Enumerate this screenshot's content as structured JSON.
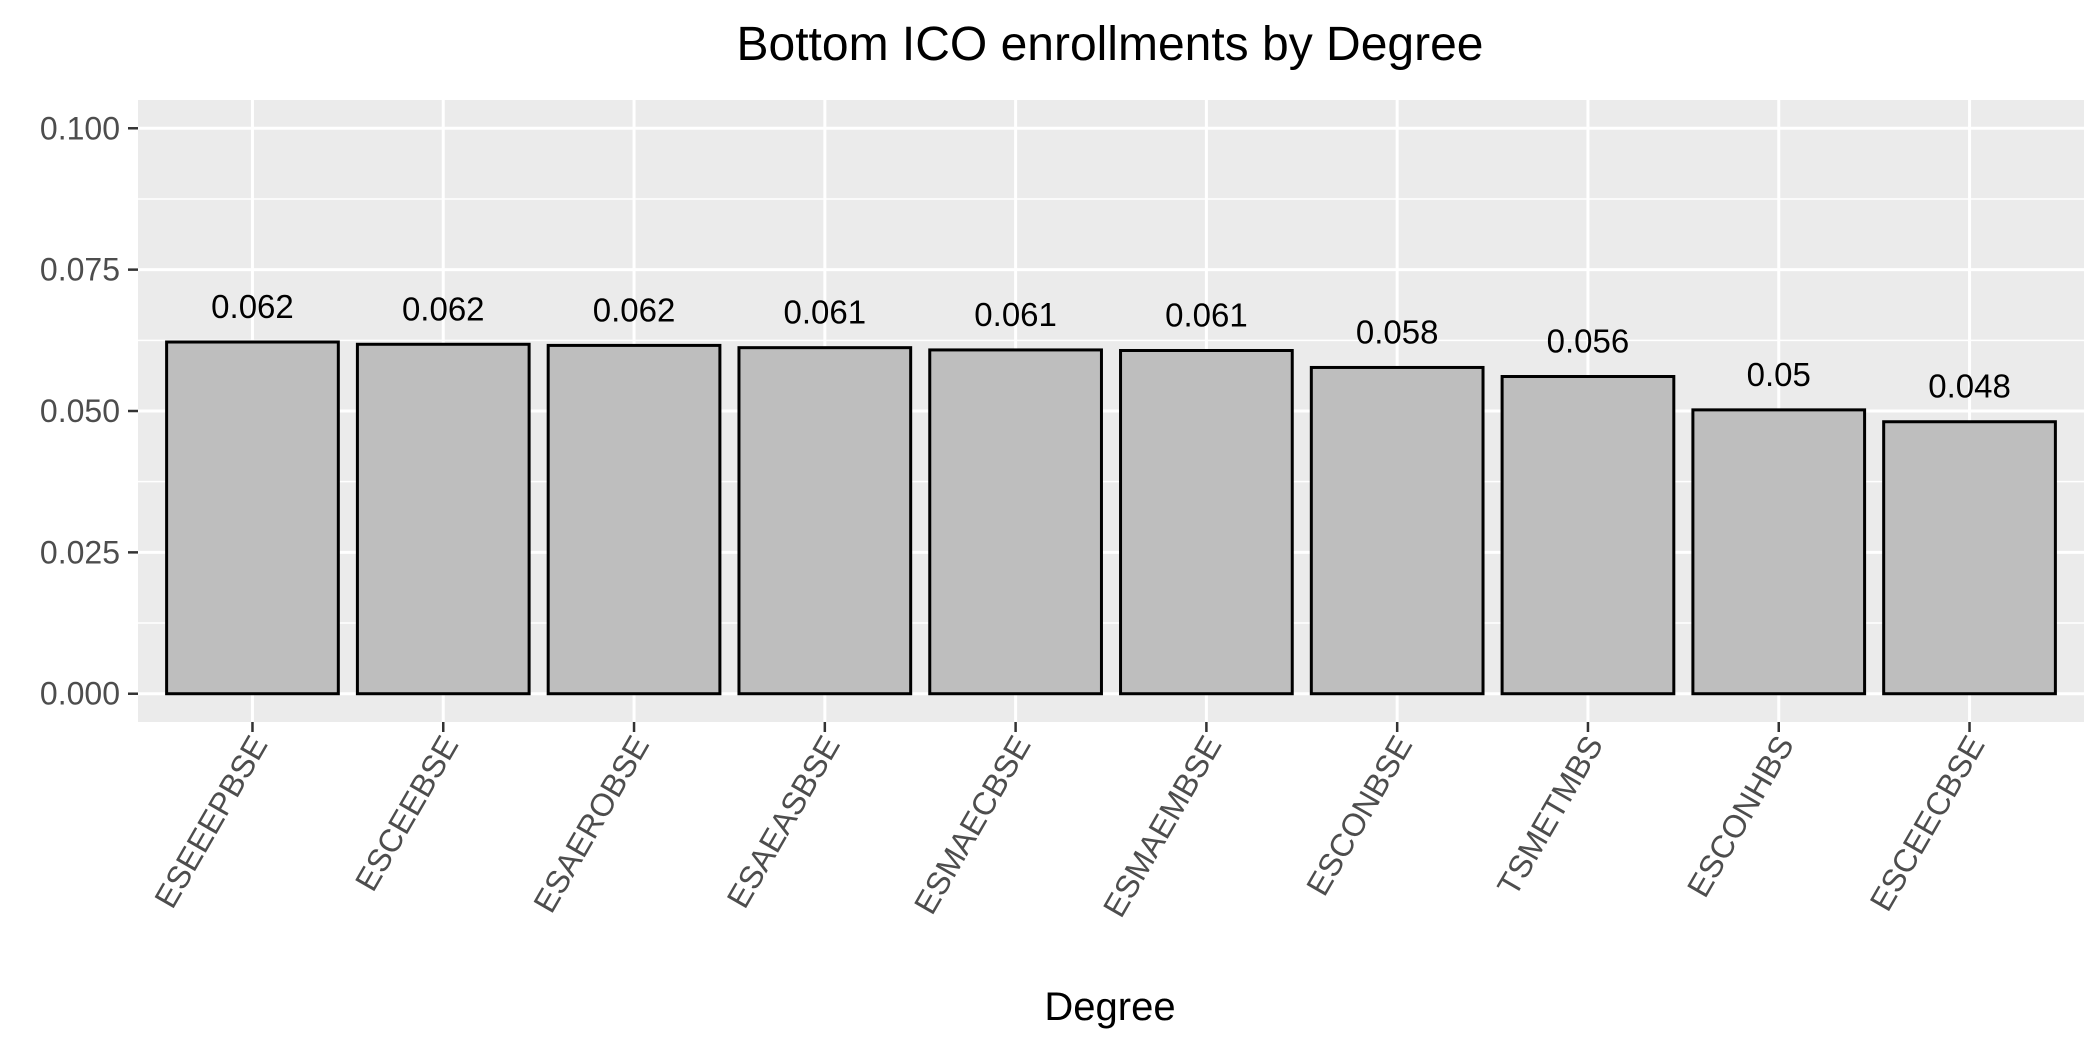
{
  "chart_data": {
    "type": "bar",
    "title": "Bottom ICO enrollments by Degree",
    "xlabel": "Degree",
    "ylabel": "",
    "categories": [
      "ESEEEPBSE",
      "ESCEEBSE",
      "ESAEROBSE",
      "ESAEASBSE",
      "ESMAECBSE",
      "ESMAEMBSE",
      "ESCONBSE",
      "TSMETMBS",
      "ESCONHBS",
      "ESCEECBSE"
    ],
    "values": [
      0.0622,
      0.0618,
      0.0616,
      0.0612,
      0.0608,
      0.0607,
      0.0577,
      0.0561,
      0.0502,
      0.0481
    ],
    "data_labels": [
      "0.062",
      "0.062",
      "0.062",
      "0.061",
      "0.061",
      "0.061",
      "0.058",
      "0.056",
      "0.05",
      "0.048"
    ],
    "ylim": [
      -0.005,
      0.105
    ],
    "yticks": [
      0,
      0.025,
      0.05,
      0.075,
      0.1
    ],
    "ytick_labels": [
      "0.000",
      "0.025",
      "0.050",
      "0.075",
      "0.100"
    ],
    "grid": true,
    "legend": "none",
    "colors": {
      "bar_fill": "#bebebe",
      "bar_outline": "#000000",
      "panel": "#ebebeb"
    }
  }
}
